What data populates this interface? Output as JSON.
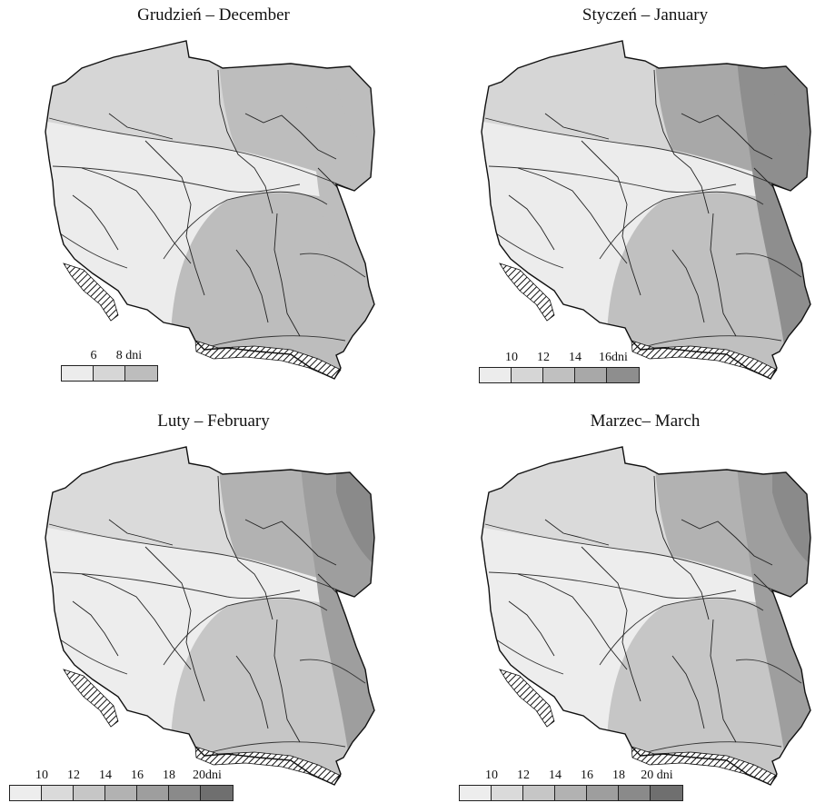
{
  "panels": [
    {
      "title": "Grudzień – December",
      "legend": {
        "labels": [
          "6",
          "8 dni"
        ],
        "colors": [
          "#ececec",
          "#d6d6d6",
          "#bdbdbd"
        ]
      },
      "zone_colors": [
        "#ececec",
        "#d6d6d6",
        "#bdbdbd",
        "#bdbdbd",
        "#bdbdbd",
        "#bdbdbd",
        "#bdbdbd"
      ]
    },
    {
      "title": "Styczeń – January",
      "legend": {
        "labels": [
          "10",
          "12",
          "14",
          "16dni"
        ],
        "colors": [
          "#ececec",
          "#d6d6d6",
          "#c0c0c0",
          "#a8a8a8",
          "#8e8e8e"
        ]
      },
      "zone_colors": [
        "#ececec",
        "#d6d6d6",
        "#c0c0c0",
        "#a8a8a8",
        "#8e8e8e",
        "#8e8e8e",
        "#8e8e8e"
      ]
    },
    {
      "title": "Luty – February",
      "legend": {
        "labels": [
          "10",
          "12",
          "14",
          "16",
          "18",
          "20dni"
        ],
        "colors": [
          "#ededed",
          "#dadada",
          "#c6c6c6",
          "#b2b2b2",
          "#9e9e9e",
          "#8a8a8a",
          "#6f6f6f"
        ]
      },
      "zone_colors": [
        "#ededed",
        "#dadada",
        "#c6c6c6",
        "#b2b2b2",
        "#9e9e9e",
        "#8a8a8a",
        "#6f6f6f"
      ]
    },
    {
      "title": "Marzec– March",
      "legend": {
        "labels": [
          "10",
          "12",
          "14",
          "16",
          "18",
          "20 dni"
        ],
        "colors": [
          "#ededed",
          "#dadada",
          "#c6c6c6",
          "#b2b2b2",
          "#9e9e9e",
          "#8a8a8a",
          "#6f6f6f"
        ]
      },
      "zone_colors": [
        "#ededed",
        "#dadada",
        "#c6c6c6",
        "#b2b2b2",
        "#9e9e9e",
        "#8a8a8a",
        "#6f6f6f"
      ]
    }
  ]
}
